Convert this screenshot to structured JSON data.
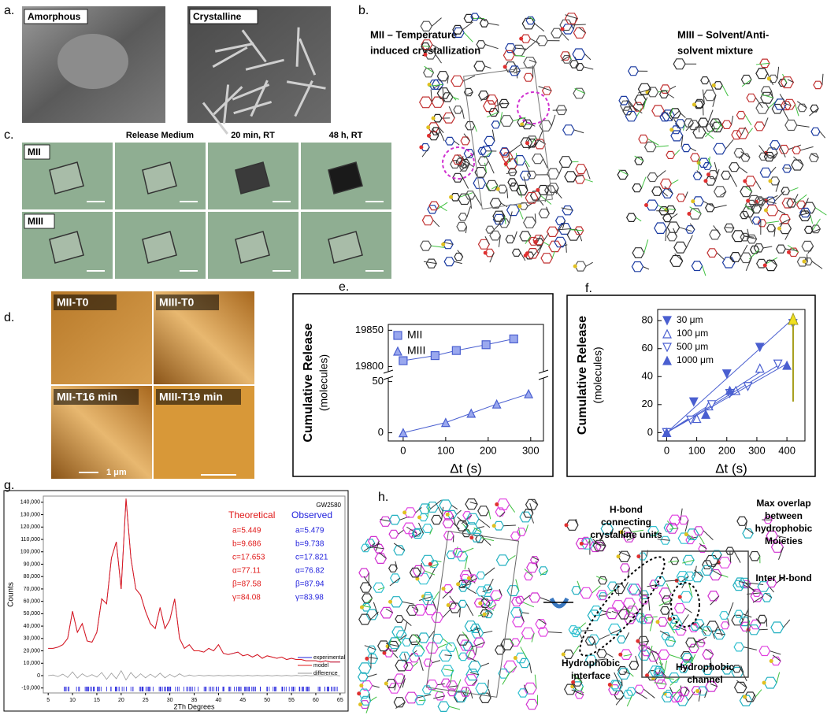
{
  "panels": {
    "a": {
      "label": "a.",
      "images": [
        "Amorphous",
        "Crystalline"
      ]
    },
    "b": {
      "label": "b.",
      "captions": [
        [
          "MII – Temperature",
          "induced crystallization"
        ],
        [
          "MIII – Solvent/Anti-",
          "solvent mixture"
        ]
      ]
    },
    "c": {
      "label": "c.",
      "columns": [
        "Release Medium",
        "20 min, RT",
        "48 h, RT"
      ],
      "rows": [
        "MII",
        "MIII"
      ]
    },
    "d": {
      "label": "d.",
      "images": [
        "MII-T0",
        "MIII-T0",
        "MII-T16 min",
        "MIII-T19 min"
      ],
      "scale_bar": "1 μm"
    },
    "h": {
      "label": "h.",
      "annotations": [
        [
          "H-bond",
          "connecting",
          "crystalline units"
        ],
        [
          "Max overlap",
          "between",
          "hydrophobic",
          "Moieties"
        ],
        [
          "Inter H-bond"
        ],
        [
          "Hydrophobic",
          "interface"
        ],
        [
          "Hydrophobic",
          "channel"
        ]
      ]
    }
  },
  "chart_data": [
    {
      "type": "broken-scatter",
      "panel_label": "e.",
      "ylabel": [
        "Cumulative Release",
        "(molecules)"
      ],
      "xlabel": "Δt (s)",
      "xlim": [
        -35,
        330
      ],
      "xticks": [
        0,
        100,
        200,
        300
      ],
      "ylim": [
        -8,
        52
      ],
      "yticks": [
        0,
        50
      ],
      "upper_ylim": [
        19795,
        19858
      ],
      "upper_yticks": [
        19800,
        19850
      ],
      "series": [
        {
          "name": "MII",
          "color": "#4a5fd0",
          "marker": "square",
          "axis": "upper",
          "x": [
            0,
            75,
            125,
            195,
            260
          ],
          "values": [
            19808,
            19815,
            19822,
            19830,
            19838
          ]
        },
        {
          "name": "MIII",
          "color": "#4a5fd0",
          "marker": "triangle-up",
          "axis": "lower",
          "x": [
            0,
            100,
            160,
            220,
            295
          ],
          "values": [
            0,
            10,
            19,
            28,
            38
          ]
        }
      ]
    },
    {
      "type": "scatter-fit",
      "panel_label": "f.",
      "ylabel": [
        "Cumulative Release",
        "(molecules)"
      ],
      "xlabel": "Δt (s)",
      "xlim": [
        -30,
        460
      ],
      "xticks": [
        0,
        100,
        200,
        300,
        400
      ],
      "ylim": [
        -6,
        88
      ],
      "yticks": [
        0,
        20,
        40,
        60,
        80
      ],
      "series": [
        {
          "name": "30 μm",
          "color": "#4a5fd0",
          "marker": "triangle-down-filled",
          "x": [
            0,
            90,
            200,
            310,
            420
          ],
          "values": [
            0,
            22,
            42,
            61,
            78
          ]
        },
        {
          "name": "100 μm",
          "color": "#4a5fd0",
          "marker": "triangle-up-open",
          "x": [
            0,
            100,
            140,
            230,
            310
          ],
          "values": [
            0,
            10,
            19,
            30,
            46
          ]
        },
        {
          "name": "500 μm",
          "color": "#4a5fd0",
          "marker": "triangle-down-open",
          "x": [
            0,
            80,
            150,
            210,
            270,
            370
          ],
          "values": [
            0,
            9,
            20,
            28,
            33,
            49
          ]
        },
        {
          "name": "1000 μm",
          "color": "#4a5fd0",
          "marker": "triangle-up-filled",
          "x": [
            0,
            130,
            210,
            400
          ],
          "values": [
            0,
            13,
            30,
            48
          ]
        }
      ]
    },
    {
      "type": "line",
      "panel_label": "g.",
      "title": "GW2580",
      "ylabel": "Counts",
      "xlabel": "2Th Degrees",
      "xlim": [
        4,
        66
      ],
      "xticks": [
        5,
        10,
        15,
        20,
        25,
        30,
        35,
        40,
        45,
        50,
        55,
        60,
        65
      ],
      "ylim": [
        -14000,
        145000
      ],
      "yticks": [
        {
          "value": -10000,
          "label": "-10,000"
        },
        0,
        {
          "value": 10000,
          "label": "10,000"
        },
        {
          "value": 20000,
          "label": "20,000"
        },
        {
          "value": 30000,
          "label": "30,000"
        },
        {
          "value": 40000,
          "label": "40,000"
        },
        {
          "value": 50000,
          "label": "50,000"
        },
        {
          "value": 60000,
          "label": "60,000"
        },
        {
          "value": 70000,
          "label": "70,000"
        },
        {
          "value": 80000,
          "label": "80,000"
        },
        {
          "value": 90000,
          "label": "90,000"
        },
        {
          "value": 100000,
          "label": "100,000"
        },
        {
          "value": 110000,
          "label": "110,000"
        },
        {
          "value": 120000,
          "label": "120,000"
        },
        {
          "value": 130000,
          "label": "130,000"
        },
        {
          "value": 140000,
          "label": "140,000"
        }
      ],
      "x": [
        5,
        6,
        7,
        8,
        9,
        10,
        11,
        12,
        13,
        14,
        15,
        16,
        17,
        18,
        19,
        20,
        21,
        22,
        23,
        24,
        25,
        26,
        27,
        28,
        29,
        30,
        31,
        32,
        33,
        34,
        35,
        36,
        37,
        38,
        39,
        40,
        41,
        42,
        43,
        44,
        45,
        46,
        47,
        48,
        49,
        50,
        51,
        52,
        53,
        54,
        55,
        56,
        57,
        58,
        59,
        60,
        61,
        62,
        63,
        64,
        65
      ],
      "series": [
        {
          "name": "experimental",
          "color": "#2222dd",
          "values": [
            22000,
            22000,
            23000,
            25000,
            30000,
            52000,
            35000,
            42000,
            28000,
            27000,
            35000,
            62000,
            58000,
            95000,
            108000,
            70000,
            143000,
            95000,
            70000,
            65000,
            52000,
            42000,
            38000,
            55000,
            38000,
            45000,
            62000,
            30000,
            22000,
            25000,
            20000,
            20000,
            19000,
            22000,
            20000,
            25000,
            18000,
            17000,
            18000,
            19000,
            16000,
            17000,
            15000,
            17000,
            14000,
            16000,
            15000,
            14000,
            15000,
            13000,
            14000,
            13000,
            13000,
            12000,
            12000,
            12000,
            11000,
            12000,
            11000,
            11000,
            11000
          ]
        },
        {
          "name": "model",
          "color": "#e01818",
          "values": [
            22000,
            22000,
            23000,
            25000,
            30000,
            52000,
            35000,
            42000,
            28000,
            27000,
            35000,
            62000,
            58000,
            95000,
            108000,
            70000,
            143000,
            95000,
            70000,
            65000,
            52000,
            42000,
            38000,
            55000,
            38000,
            45000,
            62000,
            30000,
            22000,
            25000,
            20000,
            20000,
            19000,
            22000,
            20000,
            25000,
            18000,
            17000,
            18000,
            19000,
            16000,
            17000,
            15000,
            17000,
            14000,
            16000,
            15000,
            14000,
            15000,
            13000,
            14000,
            13000,
            13000,
            12000,
            12000,
            12000,
            11000,
            12000,
            11000,
            11000,
            11000
          ]
        },
        {
          "name": "difference",
          "color": "#999999",
          "values": [
            0,
            500,
            -800,
            1200,
            -1500,
            3000,
            -2000,
            1500,
            -1000,
            800,
            -1200,
            2500,
            -3000,
            2000,
            -2500,
            4000,
            -3500,
            2500,
            -2000,
            1500,
            -1800,
            1200,
            -1500,
            2000,
            -1800,
            1000,
            -1200,
            1500,
            -800,
            500,
            -400,
            300,
            -200,
            200,
            -200,
            200,
            -200,
            200,
            -200,
            200,
            -200,
            200,
            -200,
            200,
            -200,
            200,
            -200,
            200,
            -200,
            200,
            -200,
            200,
            -200,
            200,
            -200,
            200,
            -200,
            200,
            -200,
            200,
            -200
          ]
        }
      ],
      "annotations": [
        {
          "title": "Theoretical",
          "color": "#e01818",
          "lines": [
            "a=5.449",
            "b=9.686",
            "c=17.653",
            "α=77.11",
            "β=87.58",
            "γ=84.08"
          ]
        },
        {
          "title": "Observed",
          "color": "#2222dd",
          "lines": [
            "a=5.479",
            "b=9.738",
            "c=17.821",
            "α=76.82",
            "β=87.94",
            "γ=83.98"
          ]
        }
      ]
    }
  ]
}
